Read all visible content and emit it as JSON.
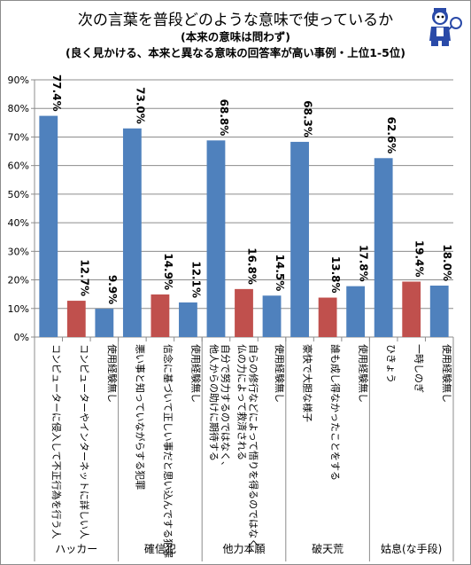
{
  "chart_data": {
    "type": "bar",
    "title": "次の言葉を普段どのような意味で使っているか",
    "subtitle": "(本来の意味は問わず)",
    "subtitle2": "(良く見かける、本来と異なる意味の回答率が高い事例・上位1-5位)",
    "ylim": [
      0,
      0.9
    ],
    "yticks": [
      "0%",
      "10%",
      "20%",
      "30%",
      "40%",
      "50%",
      "60%",
      "70%",
      "80%",
      "90%"
    ],
    "grid": true,
    "groups": [
      {
        "name": "ハッカー",
        "bars": [
          {
            "label": "コンピューターに侵入して不正行為を行う人",
            "value": 0.774,
            "text": "77.4%",
            "kind": "wrong"
          },
          {
            "label": "コンピューターやインターネットに詳しい人",
            "value": 0.127,
            "text": "12.7%",
            "kind": "original"
          },
          {
            "label": "使用経験無し",
            "value": 0.099,
            "text": "9.9%",
            "kind": "none"
          }
        ]
      },
      {
        "name": "確信犯",
        "bars": [
          {
            "label": "悪い事と知っていながらする犯罪",
            "value": 0.73,
            "text": "73.0%",
            "kind": "wrong"
          },
          {
            "label": "信念に基づいて正しい事だと思い込んでする犯罪",
            "value": 0.149,
            "text": "14.9%",
            "kind": "original"
          },
          {
            "label": "使用経験無し",
            "value": 0.121,
            "text": "12.1%",
            "kind": "none"
          }
        ]
      },
      {
        "name": "他力本願",
        "bars": [
          {
            "label": "自分で努力するのではなく、他人からの助けに期待する",
            "value": 0.688,
            "text": "68.8%",
            "kind": "wrong"
          },
          {
            "label": "自らの修行などによって悟りを得るのではなく、仏の力によって救済される",
            "value": 0.168,
            "text": "16.8%",
            "kind": "original"
          },
          {
            "label": "使用経験無し",
            "value": 0.145,
            "text": "14.5%",
            "kind": "none"
          }
        ]
      },
      {
        "name": "破天荒",
        "bars": [
          {
            "label": "豪快で大胆な様子",
            "value": 0.683,
            "text": "68.3%",
            "kind": "wrong"
          },
          {
            "label": "誰も成し得なかったことをする",
            "value": 0.138,
            "text": "13.8%",
            "kind": "original"
          },
          {
            "label": "使用経験無し",
            "value": 0.178,
            "text": "17.8%",
            "kind": "none"
          }
        ]
      },
      {
        "name": "姑息(な手段)",
        "bars": [
          {
            "label": "ひきょう",
            "value": 0.626,
            "text": "62.6%",
            "kind": "wrong"
          },
          {
            "label": "一時しのぎ",
            "value": 0.194,
            "text": "19.4%",
            "kind": "original"
          },
          {
            "label": "使用経験無し",
            "value": 0.18,
            "text": "18.0%",
            "kind": "none"
          }
        ]
      }
    ]
  },
  "colors": {
    "wrong": "#4f81bd",
    "original": "#c0504d",
    "none": "#4f81bd",
    "grid": "#8c8c8c",
    "axis": "#8c8c8c",
    "text": "#000000"
  },
  "mascot": {
    "icon": "mascot-icon"
  }
}
